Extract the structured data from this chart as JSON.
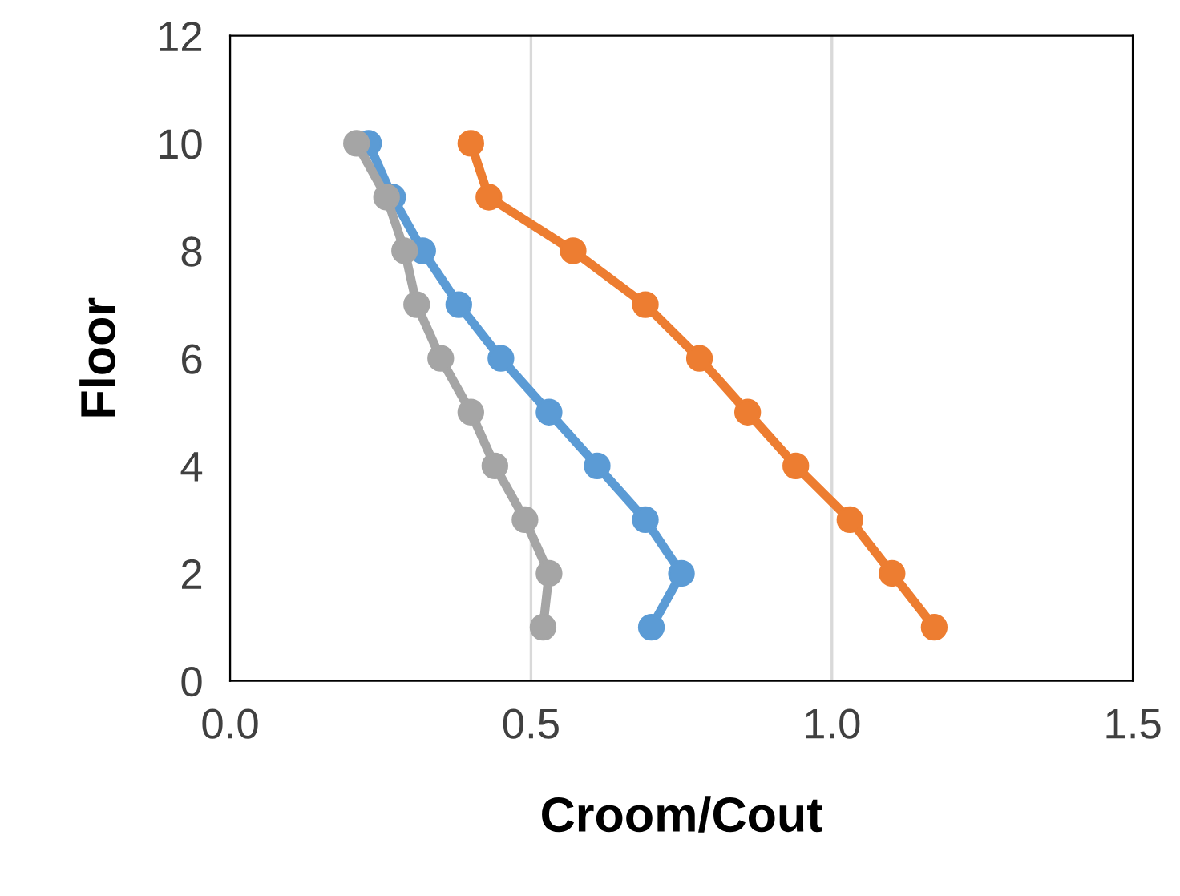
{
  "chart_data": {
    "type": "line",
    "xlabel": "Croom/Cout",
    "ylabel": "Floor",
    "xlim": [
      0,
      1.5
    ],
    "xticks": [
      {
        "value": 0,
        "label": "0.0"
      },
      0.5,
      {
        "value": 1,
        "label": "1.0"
      },
      1.5
    ],
    "ylim": [
      0,
      12
    ],
    "yticks": [
      0,
      2,
      4,
      6,
      8,
      10,
      12
    ],
    "grid": "x",
    "marker": "circle",
    "line_style": "solid",
    "series": [
      {
        "color": "#5b9bd5",
        "x": [
          0.7,
          0.75,
          0.69,
          0.61,
          0.53,
          0.45,
          0.38,
          0.32,
          0.27,
          0.23
        ],
        "values": [
          1,
          2,
          3,
          4,
          5,
          6,
          7,
          8,
          9,
          10
        ]
      },
      {
        "color": "#ed7d31",
        "x": [
          1.17,
          1.1,
          1.03,
          0.94,
          0.86,
          0.78,
          0.69,
          0.57,
          0.43,
          0.4
        ],
        "values": [
          1,
          2,
          3,
          4,
          5,
          6,
          7,
          8,
          9,
          10
        ]
      },
      {
        "color": "#a5a5a5",
        "x": [
          0.52,
          0.53,
          0.49,
          0.44,
          0.4,
          0.35,
          0.31,
          0.29,
          0.26,
          0.21
        ],
        "values": [
          1,
          2,
          3,
          4,
          5,
          6,
          7,
          8,
          9,
          10
        ]
      }
    ]
  }
}
